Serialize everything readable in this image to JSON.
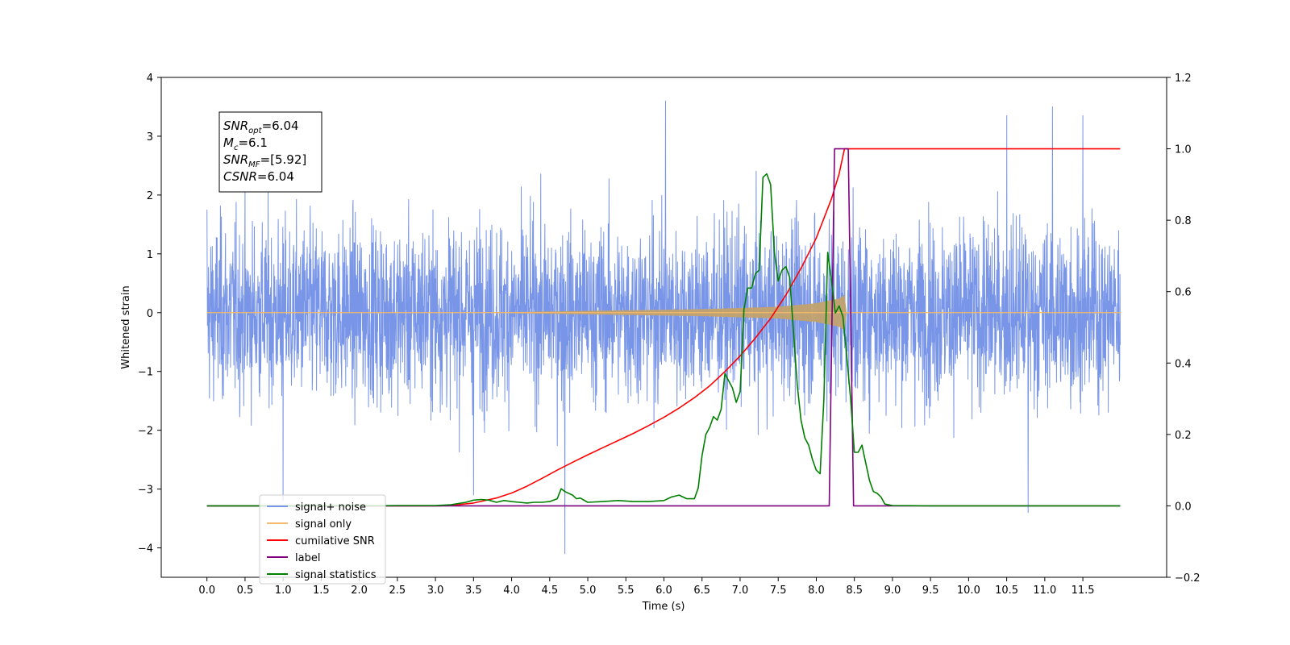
{
  "chart_data": {
    "type": "line",
    "xlabel": "Time (s)",
    "ylabel": "Whitened strain",
    "xlim": [
      -0.6,
      12.6
    ],
    "ylim": [
      -4.5,
      4.0
    ],
    "y2lim": [
      -0.2,
      1.2
    ],
    "grid": false,
    "legend_position": "lower-left",
    "x_ticks": [
      0.0,
      0.5,
      1.0,
      1.5,
      2.0,
      2.5,
      3.0,
      3.5,
      4.0,
      4.5,
      5.0,
      5.5,
      6.0,
      6.5,
      7.0,
      7.5,
      8.0,
      8.5,
      9.0,
      9.5,
      10.0,
      10.5,
      11.0,
      11.5
    ],
    "x_tick_labels": [
      "0.0",
      "0.5",
      "1.0",
      "1.5",
      "2.0",
      "2.5",
      "3.0",
      "3.5",
      "4.0",
      "4.5",
      "5.0",
      "5.5",
      "6.0",
      "6.5",
      "7.0",
      "7.5",
      "8.0",
      "8.5",
      "9.0",
      "9.5",
      "10.0",
      "10.5",
      "11.0",
      "11.5"
    ],
    "y_ticks": [
      4,
      3,
      2,
      1,
      0,
      -1,
      -2,
      -3,
      -4
    ],
    "y_tick_labels": [
      "4",
      "3",
      "2",
      "1",
      "0",
      "−1",
      "−2",
      "−3",
      "−4"
    ],
    "y2_ticks": [
      1.2,
      1.0,
      0.8,
      0.6,
      0.4,
      0.2,
      0.0,
      -0.2
    ],
    "y2_tick_labels": [
      "1.2",
      "1.0",
      "0.8",
      "0.6",
      "0.4",
      "0.2",
      "0.0",
      "−0.2"
    ],
    "annotation": {
      "lines": [
        {
          "var": "SNR",
          "sub": "opt",
          "rest": "=6.04"
        },
        {
          "var": "M",
          "sub": "c",
          "rest": "=6.1"
        },
        {
          "var": "SNR",
          "sub": "MF",
          "rest": "=[5.92]"
        },
        {
          "var": "CSNR",
          "sub": "",
          "rest": "=6.04"
        }
      ]
    },
    "series": [
      {
        "name": "signal+ noise",
        "color": "#7895e8",
        "axis": "left",
        "description": "dense noise trace, approx amplitude ±2.5 with spikes",
        "x_range": [
          0.0,
          11.99
        ],
        "notable_peaks": [
          [
            0.0,
            1.75
          ],
          [
            6.02,
            3.6
          ],
          [
            10.5,
            3.35
          ],
          [
            11.1,
            3.5
          ],
          [
            11.5,
            3.35
          ],
          [
            4.7,
            -4.1
          ],
          [
            10.78,
            -3.4
          ],
          [
            3.5,
            -3.1
          ],
          [
            1.0,
            -3.2
          ]
        ]
      },
      {
        "name": "signal only",
        "color": "#f5b96a",
        "axis": "left",
        "description": "chirp, near-zero envelope growing until merger at ~8.37 s",
        "envelope": {
          "x": [
            0.0,
            3.5,
            4.5,
            5.5,
            6.5,
            7.0,
            7.5,
            8.0,
            8.3,
            8.37,
            8.4,
            12.0
          ],
          "amp": [
            0.0,
            0.0,
            0.02,
            0.04,
            0.06,
            0.08,
            0.1,
            0.16,
            0.24,
            0.3,
            0.0,
            0.0
          ]
        }
      },
      {
        "name": "cumilative SNR",
        "color": "#ff0000",
        "axis": "right",
        "x": [
          0.0,
          3.0,
          3.2,
          3.5,
          3.8,
          4.0,
          4.2,
          4.4,
          4.6,
          4.8,
          5.0,
          5.2,
          5.4,
          5.6,
          5.8,
          6.0,
          6.2,
          6.4,
          6.6,
          6.8,
          7.0,
          7.2,
          7.4,
          7.6,
          7.8,
          8.0,
          8.2,
          8.3,
          8.37,
          8.4,
          11.99
        ],
        "y": [
          0.0,
          0.0,
          0.001,
          0.008,
          0.022,
          0.036,
          0.055,
          0.077,
          0.1,
          0.122,
          0.143,
          0.163,
          0.183,
          0.203,
          0.225,
          0.248,
          0.274,
          0.303,
          0.336,
          0.376,
          0.42,
          0.47,
          0.525,
          0.59,
          0.665,
          0.75,
          0.86,
          0.93,
          1.0,
          1.0,
          1.0
        ]
      },
      {
        "name": "label",
        "color": "#800080",
        "axis": "right",
        "x": [
          0.0,
          8.17,
          8.24,
          8.42,
          8.49,
          11.99
        ],
        "y": [
          0.0,
          0.0,
          1.0,
          1.0,
          0.0,
          0.0
        ]
      },
      {
        "name": "signal statistics",
        "color": "#008000",
        "axis": "right",
        "x": [
          0.0,
          2.0,
          2.5,
          3.0,
          3.2,
          3.4,
          3.5,
          3.6,
          3.7,
          3.8,
          3.9,
          4.0,
          4.1,
          4.2,
          4.3,
          4.4,
          4.5,
          4.6,
          4.65,
          4.7,
          4.8,
          4.85,
          4.9,
          5.0,
          5.2,
          5.4,
          5.6,
          5.8,
          6.0,
          6.1,
          6.2,
          6.3,
          6.4,
          6.45,
          6.5,
          6.55,
          6.6,
          6.65,
          6.7,
          6.75,
          6.8,
          6.85,
          6.9,
          6.95,
          7.0,
          7.05,
          7.1,
          7.15,
          7.2,
          7.25,
          7.3,
          7.35,
          7.4,
          7.45,
          7.5,
          7.55,
          7.6,
          7.65,
          7.7,
          7.75,
          7.8,
          7.85,
          7.9,
          7.95,
          8.0,
          8.05,
          8.1,
          8.15,
          8.2,
          8.25,
          8.3,
          8.35,
          8.4,
          8.45,
          8.5,
          8.55,
          8.6,
          8.65,
          8.7,
          8.75,
          8.8,
          8.85,
          8.9,
          9.0,
          9.5,
          10.0,
          11.0,
          11.99
        ],
        "y": [
          0.0,
          0.0,
          0.001,
          0.001,
          0.003,
          0.01,
          0.016,
          0.018,
          0.016,
          0.01,
          0.015,
          0.012,
          0.01,
          0.008,
          0.01,
          0.01,
          0.012,
          0.02,
          0.048,
          0.04,
          0.03,
          0.02,
          0.022,
          0.01,
          0.012,
          0.015,
          0.012,
          0.012,
          0.015,
          0.025,
          0.03,
          0.02,
          0.02,
          0.05,
          0.14,
          0.2,
          0.22,
          0.25,
          0.24,
          0.27,
          0.37,
          0.35,
          0.33,
          0.29,
          0.32,
          0.55,
          0.61,
          0.61,
          0.65,
          0.66,
          0.92,
          0.93,
          0.9,
          0.71,
          0.63,
          0.66,
          0.67,
          0.64,
          0.49,
          0.34,
          0.24,
          0.19,
          0.17,
          0.13,
          0.1,
          0.09,
          0.3,
          0.71,
          0.63,
          0.54,
          0.56,
          0.53,
          0.42,
          0.3,
          0.15,
          0.15,
          0.17,
          0.12,
          0.07,
          0.04,
          0.035,
          0.025,
          0.005,
          0.001,
          0.0,
          0.0,
          0.0,
          0.0
        ]
      }
    ]
  }
}
